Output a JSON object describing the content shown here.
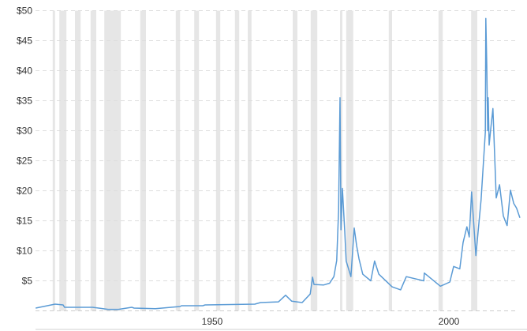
{
  "chart_data": {
    "type": "line",
    "title": "",
    "xlabel": "",
    "ylabel": "",
    "xlim": [
      1912.7,
      2015
    ],
    "ylim": [
      0,
      50
    ],
    "y_ticks": [
      "$5",
      "$10",
      "$15",
      "$20",
      "$25",
      "$30",
      "$35",
      "$40",
      "$45",
      "$50"
    ],
    "y_tick_values": [
      5,
      10,
      15,
      20,
      25,
      30,
      35,
      40,
      45,
      50
    ],
    "x_ticks": [
      "1950",
      "2000"
    ],
    "x_tick_values": [
      1950,
      2000
    ],
    "grid": "horizontal dashed",
    "colors": {
      "line": "#5b9bd5",
      "band": "#e6e6e6",
      "grid": "#dddddd",
      "text": "#333333"
    },
    "shaded_bands": [
      [
        1916.3,
        1916.8
      ],
      [
        1917.7,
        1919.2
      ],
      [
        1921,
        1922.2
      ],
      [
        1924.3,
        1925.5
      ],
      [
        1927.2,
        1930.7
      ],
      [
        1934.8,
        1936
      ],
      [
        1942.3,
        1943.2
      ],
      [
        1946.2,
        1947.2
      ],
      [
        1950.8,
        1951.7
      ],
      [
        1954.8,
        1955.7
      ],
      [
        1957.5,
        1958.3
      ],
      [
        1967,
        1968
      ],
      [
        1970.8,
        1972.2
      ],
      [
        1977,
        1977.5
      ],
      [
        1978.3,
        1979.8
      ],
      [
        1987.3,
        1988
      ],
      [
        1997.8,
        1998.7
      ],
      [
        2004.7,
        2006
      ]
    ],
    "series": [
      {
        "x": [
          1912.7,
          1916.8,
          1918.5,
          1918.8,
          1924.7,
          1928,
          1930.2,
          1933,
          1933.5,
          1938,
          1943.2,
          1943.5,
          1948,
          1948.5,
          1959,
          1960.2,
          1964,
          1965.5,
          1966.8,
          1969,
          1970.7,
          1971.2,
          1971.5,
          1973.5,
          1974.8,
          1975.7,
          1976.3,
          1976.7,
          1977,
          1977.2,
          1977.5,
          1978,
          1978.3,
          1979.3,
          1980,
          1980.5,
          1981,
          1981.8,
          1983.5,
          1984.3,
          1985.2,
          1988,
          1989.8,
          1991,
          1994.7,
          1994.8,
          1998.2,
          2000.2,
          2001,
          2002.3,
          2003,
          2003.8,
          2004.3,
          2004.8,
          2005.7,
          2006.8,
          2007.7,
          2007.8,
          2008,
          2008.2,
          2008.3,
          2008.5,
          2008.8,
          2009.3,
          2010,
          2010.7,
          2011.5,
          2012.3,
          2013,
          2013.7,
          2014.3,
          2015
        ],
        "y": [
          0.46,
          1.12,
          0.99,
          0.59,
          0.59,
          0.25,
          0.25,
          0.59,
          0.46,
          0.35,
          0.72,
          0.86,
          0.86,
          0.99,
          1.12,
          1.38,
          1.5,
          2.6,
          1.6,
          1.38,
          2.8,
          5.6,
          4.4,
          4.3,
          4.6,
          5.7,
          8.4,
          16.8,
          35.5,
          13.5,
          20.4,
          13.2,
          8.3,
          5.7,
          13.8,
          10.9,
          8.7,
          6.1,
          5.0,
          8.3,
          6.1,
          4.0,
          3.5,
          5.7,
          5.0,
          6.3,
          4.1,
          4.8,
          7.4,
          7.0,
          11.4,
          14.0,
          12.3,
          19.8,
          9.2,
          18.5,
          29.8,
          48.7,
          41.0,
          30.0,
          35.5,
          27.6,
          30.0,
          33.7,
          18.8,
          21.0,
          15.8,
          14.2,
          20.1,
          17.9,
          17.1,
          15.5
        ]
      }
    ]
  }
}
